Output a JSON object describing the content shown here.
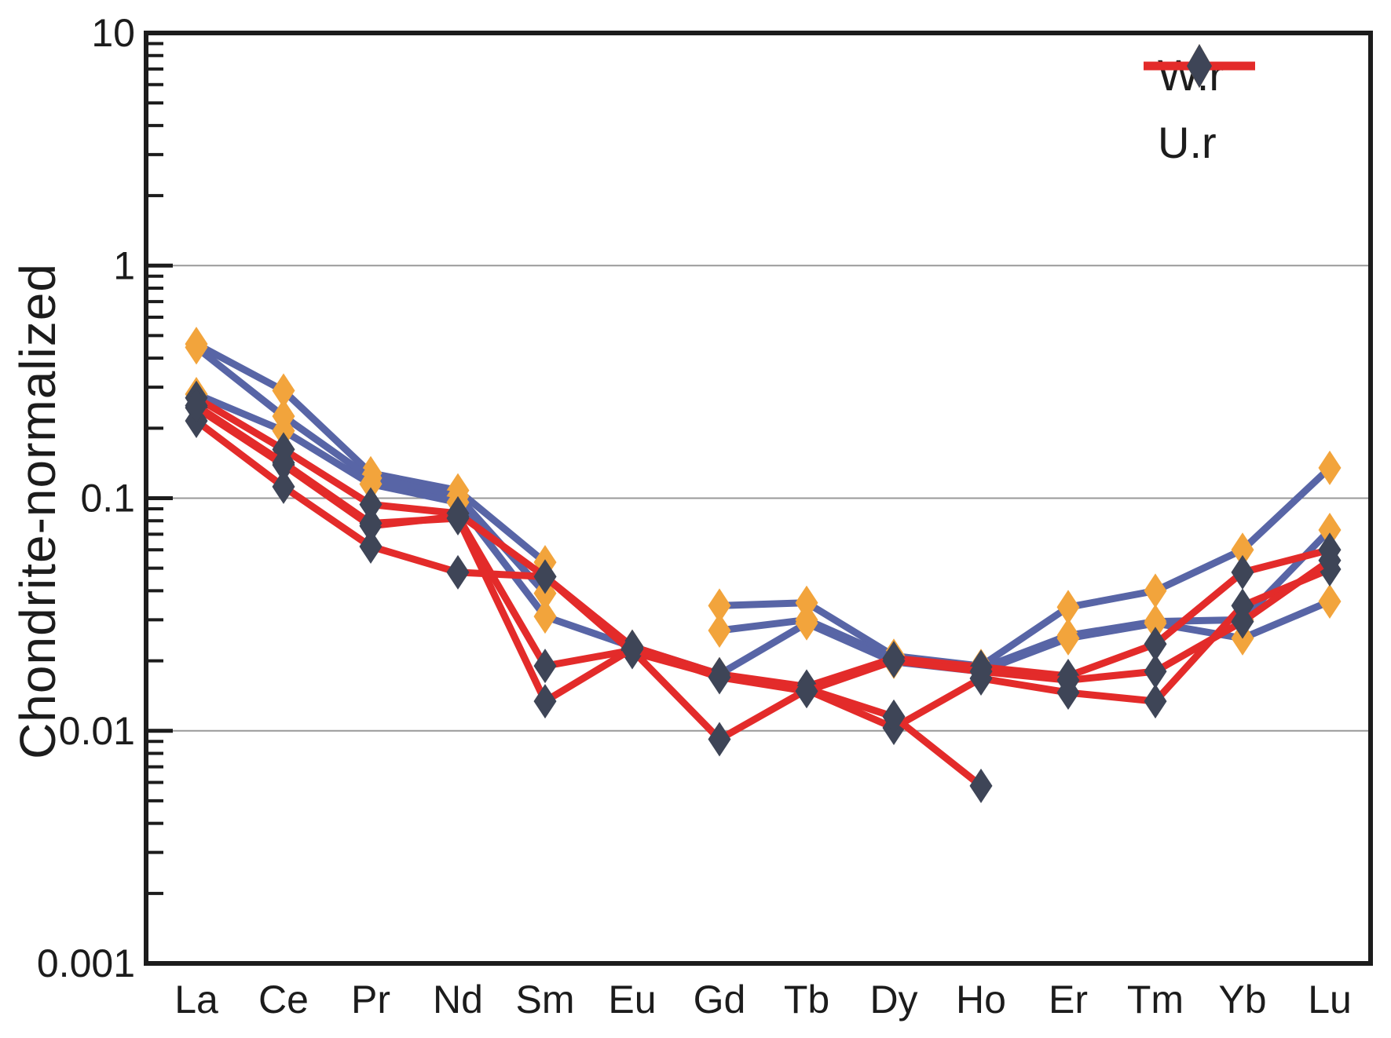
{
  "chart_data": {
    "type": "line",
    "title": "",
    "ylabel": "Chondrite-normalized",
    "xlabel": "",
    "log_scale_y": true,
    "ylim": [
      0.001,
      10
    ],
    "y_tick_labels": [
      "10",
      "1",
      "0.1",
      "0.01",
      "0.001"
    ],
    "y_tick_values": [
      10,
      1,
      0.1,
      0.01,
      0.001
    ],
    "gridline_values": [
      1,
      0.1,
      0.01
    ],
    "grid_on": true,
    "legend_position": "top-right",
    "categories": [
      "La",
      "Ce",
      "Pr",
      "Nd",
      "Sm",
      "Eu",
      "Gd",
      "Tb",
      "Dy",
      "Ho",
      "Er",
      "Tm",
      "Yb",
      "Lu"
    ],
    "legend": [
      {
        "label": "W.r",
        "line_color": "#5865a6",
        "marker": "diamond",
        "marker_color": "#f2a43c"
      },
      {
        "label": "U.r",
        "line_color": "#e32b2a",
        "marker": "diamond",
        "marker_color": "#3e4557"
      }
    ],
    "series": [
      {
        "group": "W.r",
        "line_color": "#5865a6",
        "marker_color": "#f2a43c",
        "values": [
          0.46,
          0.29,
          0.128,
          0.108,
          0.053,
          null,
          0.0345,
          0.0355,
          0.021,
          0.019,
          0.034,
          0.04,
          0.06,
          0.135
        ]
      },
      {
        "group": "W.r",
        "line_color": "#5865a6",
        "marker_color": "#f2a43c",
        "values": [
          0.445,
          0.225,
          0.122,
          0.102,
          0.039,
          null,
          0.027,
          0.03,
          0.0205,
          0.0185,
          0.0257,
          0.0295,
          0.03,
          0.073
        ]
      },
      {
        "group": "W.r",
        "line_color": "#5865a6",
        "marker_color": "#f2a43c",
        "values": [
          0.28,
          0.195,
          0.115,
          0.096,
          0.031,
          0.023,
          0.0175,
          0.029,
          0.0198,
          0.018,
          0.025,
          0.029,
          0.025,
          0.036
        ]
      },
      {
        "group": "U.r",
        "line_color": "#e32b2a",
        "marker_color": "#3e4557",
        "values": [
          0.27,
          0.162,
          0.094,
          0.086,
          0.046,
          0.023,
          0.0175,
          0.0155,
          0.0205,
          0.0188,
          0.0172,
          0.0236,
          0.048,
          0.06
        ]
      },
      {
        "group": "U.r",
        "line_color": "#e32b2a",
        "marker_color": "#3e4557",
        "values": [
          0.245,
          0.139,
          0.076,
          0.0835,
          0.019,
          0.0222,
          0.0092,
          0.015,
          0.0103,
          0.0168,
          0.0146,
          0.0134,
          0.0345,
          0.0495
        ]
      },
      {
        "group": "U.r",
        "line_color": "#e32b2a",
        "marker_color": "#3e4557",
        "values": [
          0.215,
          0.112,
          0.062,
          0.048,
          0.046,
          0.0218,
          0.0172,
          0.0152,
          0.0115,
          0.0058,
          null,
          null,
          null,
          null
        ]
      },
      {
        "group": "U.r",
        "line_color": "#e32b2a",
        "marker_color": "#3e4557",
        "values": [
          0.25,
          0.142,
          0.078,
          0.082,
          0.0134,
          0.0225,
          0.017,
          0.0148,
          0.02,
          0.018,
          0.0165,
          0.018,
          0.0295,
          0.054
        ]
      }
    ]
  },
  "style": {
    "axis_color": "#1c1c1c",
    "grid_color": "#999999",
    "background": "#ffffff",
    "text_color": "#1c1c1c"
  }
}
